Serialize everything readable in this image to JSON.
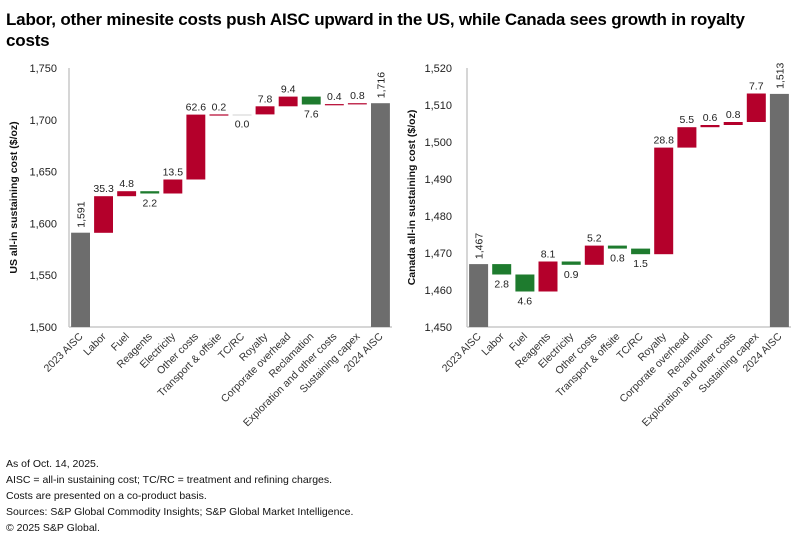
{
  "title": "Labor, other minesite costs push AISC upward in the US, while Canada sees growth in royalty costs",
  "colors": {
    "increase": "#B4002B",
    "decrease": "#1E7B2E",
    "total": "#6D6D6D",
    "axis": "#C8C8C8"
  },
  "chart_data": [
    {
      "type": "waterfall",
      "id": "us",
      "title": "",
      "xlabel": "",
      "ylabel": "US all-in sustaining cost ($/oz)",
      "ylim": [
        1500,
        1750
      ],
      "yticks": [
        1500,
        1550,
        1600,
        1650,
        1700,
        1750
      ],
      "ytick_labels": [
        "1,500",
        "1,550",
        "1,600",
        "1,650",
        "1,700",
        "1,750"
      ],
      "grid": false,
      "categories": [
        "2023 AISC",
        "Labor",
        "Fuel",
        "Reagents",
        "Electricity",
        "Other costs",
        "Transport & offsite",
        "TC/RC",
        "Royalty",
        "Corporate overhead",
        "Reclamation",
        "Exploration and other costs",
        "Sustaining capex",
        "2024 AISC"
      ],
      "values": [
        1591,
        35.3,
        4.8,
        -2.2,
        13.5,
        62.6,
        0.2,
        0.0,
        7.8,
        9.4,
        -7.6,
        0.4,
        0.8,
        1716
      ],
      "kinds": [
        "total",
        "delta",
        "delta",
        "delta",
        "delta",
        "delta",
        "delta",
        "delta",
        "delta",
        "delta",
        "delta",
        "delta",
        "delta",
        "total"
      ],
      "data_labels": [
        "1,591",
        "35.3",
        "4.8",
        "2.2",
        "13.5",
        "62.6",
        "0.2",
        "0.0",
        "7.8",
        "9.4",
        "7.6",
        "0.4",
        "0.8",
        "1,716"
      ]
    },
    {
      "type": "waterfall",
      "id": "ca",
      "title": "",
      "xlabel": "",
      "ylabel": "Canada all-in sustaining cost ($/oz)",
      "ylim": [
        1450,
        1520
      ],
      "yticks": [
        1450,
        1460,
        1470,
        1480,
        1490,
        1500,
        1510,
        1520
      ],
      "ytick_labels": [
        "1,450",
        "1,460",
        "1,470",
        "1,480",
        "1,490",
        "1,500",
        "1,510",
        "1,520"
      ],
      "grid": false,
      "categories": [
        "2023 AISC",
        "Labor",
        "Fuel",
        "Reagents",
        "Electricity",
        "Other costs",
        "Transport & offsite",
        "TC/RC",
        "Royalty",
        "Corporate overhead",
        "Reclamation",
        "Exploration and other costs",
        "Sustaining capex",
        "2024 AISC"
      ],
      "values": [
        1467,
        -2.8,
        -4.6,
        8.1,
        -0.9,
        5.2,
        -0.8,
        -1.5,
        28.8,
        5.5,
        0.6,
        0.8,
        7.7,
        1513
      ],
      "kinds": [
        "total",
        "delta",
        "delta",
        "delta",
        "delta",
        "delta",
        "delta",
        "delta",
        "delta",
        "delta",
        "delta",
        "delta",
        "delta",
        "total"
      ],
      "data_labels": [
        "1,467",
        "2.8",
        "4.6",
        "8.1",
        "0.9",
        "5.2",
        "0.8",
        "1.5",
        "28.8",
        "5.5",
        "0.6",
        "0.8",
        "7.7",
        "1,513"
      ]
    }
  ],
  "notes": [
    "As of Oct. 14, 2025.",
    "AISC = all-in sustaining cost; TC/RC = treatment and refining charges.",
    "Costs are presented on a co-product basis.",
    "Sources: S&P Global Commodity Insights; S&P Global Market Intelligence.",
    "© 2025 S&P Global."
  ]
}
